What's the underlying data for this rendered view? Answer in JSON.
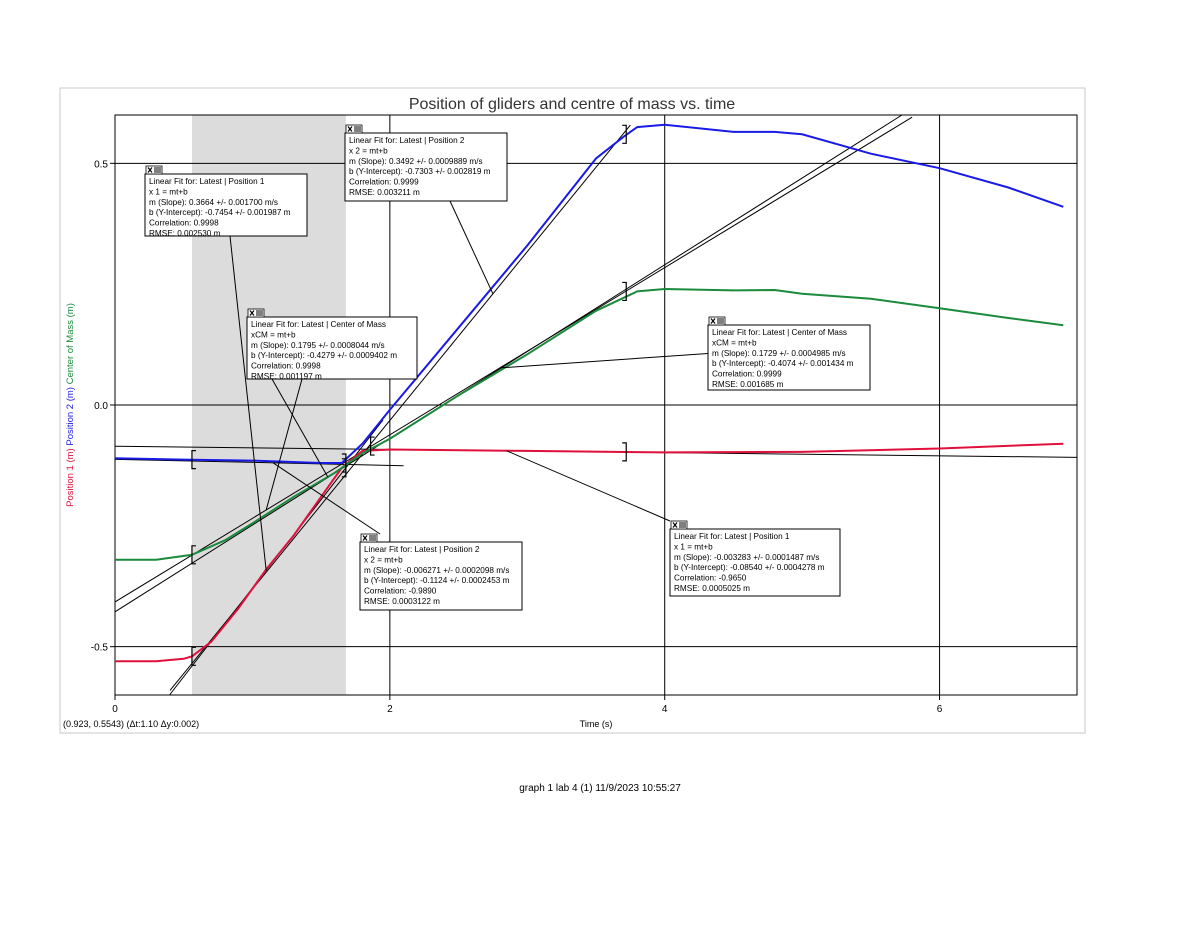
{
  "footer": "graph 1 lab 4   (1)  11/9/2023 10:55:27",
  "chart_data": {
    "type": "line",
    "title": "Position of gliders and centre of mass vs. time",
    "xlabel": "Time (s)",
    "ylabels": [
      {
        "text": "Position 1 (m)",
        "color": "#e0103c"
      },
      {
        "text": "Position 2 (m)",
        "color": "#1a1ae6"
      },
      {
        "text": "Center of Mass (m)",
        "color": "#1a8a3c"
      }
    ],
    "xlim": [
      0,
      7.0
    ],
    "ylim": [
      -0.6,
      0.6
    ],
    "xticks": [
      0,
      2,
      4,
      6
    ],
    "xtick_labels": [
      "0",
      "2",
      "4",
      "6"
    ],
    "yticks": [
      0.5,
      0.0,
      -0.5
    ],
    "ytick_labels": [
      "0.5",
      "0.0",
      "-0.5"
    ],
    "grid": true,
    "selection": {
      "x0": 0.56,
      "x1": 1.68,
      "color": "#dcdcdc"
    },
    "readout": "(0.923, 0.5543) (Δt:1.10 Δy:0.002)",
    "series": [
      {
        "name": "Position 1",
        "color": "#e0103c",
        "x": [
          0.0,
          0.3,
          0.5,
          0.56,
          0.7,
          0.9,
          1.1,
          1.3,
          1.5,
          1.65,
          1.8,
          2.0,
          3.0,
          4.0,
          5.0,
          6.0,
          6.9
        ],
        "y": [
          -0.53,
          -0.53,
          -0.525,
          -0.52,
          -0.49,
          -0.42,
          -0.34,
          -0.27,
          -0.19,
          -0.13,
          -0.095,
          -0.092,
          -0.095,
          -0.098,
          -0.097,
          -0.09,
          -0.08
        ]
      },
      {
        "name": "Position 2",
        "color": "#1a1ae6",
        "x": [
          0.0,
          0.5,
          1.0,
          1.5,
          1.65,
          1.8,
          2.0,
          2.5,
          3.0,
          3.5,
          3.7,
          3.8,
          4.0,
          4.5,
          4.8,
          5.0,
          5.5,
          6.0,
          6.5,
          6.9
        ],
        "y": [
          -0.11,
          -0.113,
          -0.115,
          -0.12,
          -0.12,
          -0.08,
          -0.01,
          0.16,
          0.33,
          0.51,
          0.555,
          0.575,
          0.58,
          0.565,
          0.565,
          0.56,
          0.52,
          0.49,
          0.45,
          0.41
        ]
      },
      {
        "name": "Center of Mass",
        "color": "#1a8a3c",
        "x": [
          0.0,
          0.3,
          0.56,
          0.8,
          1.0,
          1.3,
          1.6,
          1.8,
          2.0,
          2.5,
          3.0,
          3.5,
          3.8,
          4.0,
          4.5,
          4.8,
          5.0,
          5.5,
          6.0,
          6.5,
          6.9
        ],
        "y": [
          -0.32,
          -0.32,
          -0.31,
          -0.28,
          -0.245,
          -0.19,
          -0.14,
          -0.1,
          -0.07,
          0.02,
          0.105,
          0.195,
          0.235,
          0.24,
          0.237,
          0.238,
          0.23,
          0.22,
          0.2,
          0.18,
          0.165
        ]
      }
    ],
    "fit_lines": [
      {
        "name": "fit-position1-a",
        "m": 0.3664,
        "b": -0.7454,
        "x0": 0.35,
        "x1": 1.95
      },
      {
        "name": "fit-position2-a",
        "m": -0.006271,
        "b": -0.1124,
        "x0": 0.0,
        "x1": 2.1
      },
      {
        "name": "fit-com-a",
        "m": 0.1795,
        "b": -0.4279,
        "x0": 0.0,
        "x1": 5.8
      },
      {
        "name": "fit-position2-b",
        "m": 0.3492,
        "b": -0.7303,
        "x0": 0.4,
        "x1": 3.75
      },
      {
        "name": "fit-com-b",
        "m": 0.1729,
        "b": -0.4074,
        "x0": 0.0,
        "x1": 5.8
      },
      {
        "name": "fit-position1-b",
        "m": -0.003283,
        "b": -0.0854,
        "x0": 0.0,
        "x1": 7.0
      }
    ],
    "brackets": [
      {
        "x": 0.56,
        "y": -0.113,
        "side": "left"
      },
      {
        "x": 0.56,
        "y": -0.31,
        "side": "left"
      },
      {
        "x": 0.56,
        "y": -0.52,
        "side": "left"
      },
      {
        "x": 1.68,
        "y": -0.12,
        "side": "right"
      },
      {
        "x": 1.68,
        "y": -0.13,
        "side": "right"
      },
      {
        "x": 1.86,
        "y": -0.085,
        "side": "left"
      },
      {
        "x": 3.72,
        "y": 0.56,
        "side": "right"
      },
      {
        "x": 3.72,
        "y": 0.235,
        "side": "right"
      },
      {
        "x": 3.72,
        "y": -0.097,
        "side": "right"
      }
    ],
    "fit_boxes": [
      {
        "id": "box-position1-a",
        "lines": [
          "Linear Fit for: Latest | Position 1",
          "x 1 = mt+b",
          "m (Slope): 0.3664 +/- 0.001700 m/s",
          "b (Y-Intercept): -0.7454 +/- 0.001987 m",
          "Correlation: 0.9998",
          "RMSE: 0.002530 m"
        ]
      },
      {
        "id": "box-position2-b",
        "lines": [
          "Linear Fit for: Latest | Position 2",
          "x 2 = mt+b",
          "m (Slope): 0.3492 +/- 0.0009889 m/s",
          "b (Y-Intercept): -0.7303 +/- 0.002819 m",
          "Correlation: 0.9999",
          "RMSE: 0.003211 m"
        ]
      },
      {
        "id": "box-com-a",
        "lines": [
          "Linear Fit for: Latest | Center of Mass",
          "xCM = mt+b",
          "m (Slope): 0.1795 +/- 0.0008044 m/s",
          "b (Y-Intercept): -0.4279 +/- 0.0009402 m",
          "Correlation: 0.9998",
          "RMSE: 0.001197 m"
        ]
      },
      {
        "id": "box-com-b",
        "lines": [
          "Linear Fit for: Latest | Center of Mass",
          "xCM = mt+b",
          "m (Slope): 0.1729 +/- 0.0004985 m/s",
          "b (Y-Intercept): -0.4074 +/- 0.001434 m",
          "Correlation: 0.9999",
          "RMSE: 0.001685 m"
        ]
      },
      {
        "id": "box-position2-a",
        "lines": [
          "Linear Fit for: Latest | Position 2",
          "x 2 = mt+b",
          "m (Slope): -0.006271 +/- 0.0002098 m/s",
          "b (Y-Intercept): -0.1124 +/- 0.0002453 m",
          "Correlation: -0.9890",
          "RMSE: 0.0003122 m"
        ]
      },
      {
        "id": "box-position1-b",
        "lines": [
          "Linear Fit for: Latest | Position 1",
          "x 1 = mt+b",
          "m (Slope): -0.003283 +/- 0.0001487 m/s",
          "b (Y-Intercept): -0.08540 +/- 0.0004278 m",
          "Correlation: -0.9650",
          "RMSE: 0.0005025 m"
        ]
      }
    ]
  }
}
